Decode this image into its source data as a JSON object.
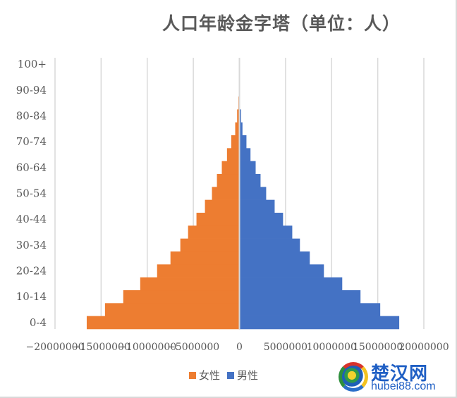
{
  "chart_data": {
    "type": "bar",
    "orientation": "horizontal",
    "subtype": "population-pyramid",
    "title": "人口年龄金字塔（单位：人）",
    "xlabel": "",
    "ylabel": "",
    "xlim": [
      -20000000,
      20000000
    ],
    "x_ticks": [
      -20000000,
      -15000000,
      -10000000,
      -5000000,
      0,
      5000000,
      10000000,
      15000000,
      20000000
    ],
    "x_tick_labels": [
      "-20000000",
      "-15000000",
      "-10000000",
      "-5000000",
      "0",
      "5000000",
      "10000000",
      "15000000",
      "20000000"
    ],
    "grid": {
      "vertical": true,
      "horizontal": false,
      "color": "#d9d9d9"
    },
    "categories": [
      "0-4",
      "5-9",
      "10-14",
      "15-19",
      "20-24",
      "25-29",
      "30-34",
      "35-39",
      "40-44",
      "45-49",
      "50-54",
      "55-59",
      "60-64",
      "65-69",
      "70-74",
      "75-79",
      "80-84",
      "85-89",
      "90-94",
      "95-99",
      "100+"
    ],
    "y_tick_labels_shown": [
      "0-4",
      "10-14",
      "20-24",
      "30-34",
      "40-44",
      "50-54",
      "60-64",
      "70-74",
      "80-84",
      "90-94",
      "100+"
    ],
    "series": [
      {
        "name": "女性",
        "color": "#ED7D31",
        "values": [
          -16560000,
          -14580000,
          -12600000,
          -10760000,
          -8930000,
          -7480000,
          -6410000,
          -5570000,
          -4660000,
          -3740000,
          -2980000,
          -2440000,
          -1910000,
          -1350000,
          -890000,
          -460000,
          -250000,
          -110000,
          0,
          0,
          0
        ]
      },
      {
        "name": "男性",
        "color": "#4472C4",
        "values": [
          17330000,
          15270000,
          13130000,
          11150000,
          9160000,
          7630000,
          6560000,
          5730000,
          4730000,
          3820000,
          2900000,
          2290000,
          1760000,
          1200000,
          760000,
          330000,
          180000,
          30000,
          0,
          0,
          0
        ]
      }
    ],
    "legend": {
      "position": "bottom",
      "entries": [
        "女性",
        "男性"
      ]
    }
  },
  "legend": {
    "female_label": "女性",
    "male_label": "男性",
    "female_color": "#ED7D31",
    "male_color": "#4472C4"
  },
  "watermark": {
    "chinese": "楚汉网",
    "domain": "hubei88.com"
  }
}
